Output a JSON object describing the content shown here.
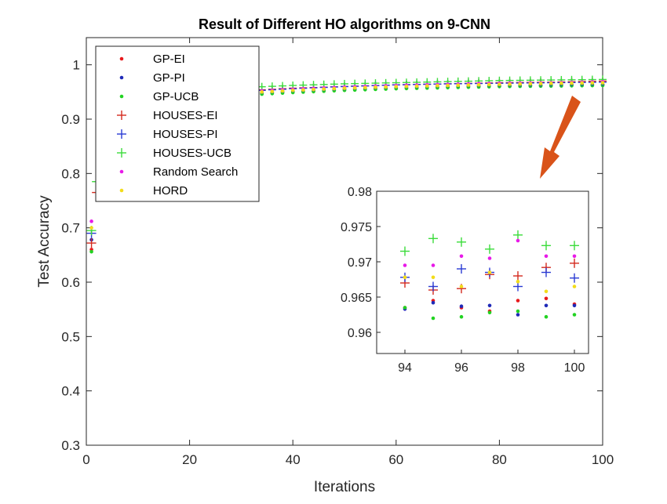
{
  "chart_data": [
    {
      "type": "scatter",
      "title": "Result of Different HO algorithms on 9-CNN",
      "xlabel": "Iterations",
      "ylabel": "Test Accuracy",
      "xlim": [
        0,
        100
      ],
      "ylim": [
        0.3,
        1.05
      ],
      "xticks": [
        "0",
        "20",
        "40",
        "60",
        "80",
        "100"
      ],
      "yticks": [
        "0.3",
        "0.4",
        "0.5",
        "0.6",
        "0.7",
        "0.8",
        "0.9",
        "1"
      ],
      "legend_position": "top-left",
      "series": [
        {
          "name": "GP-EI",
          "marker": "dot",
          "color": "#e8191c",
          "x": [
            1,
            30,
            40,
            50,
            60,
            70,
            80,
            90,
            100
          ],
          "y": [
            0.66,
            0.947,
            0.952,
            0.956,
            0.959,
            0.961,
            0.962,
            0.963,
            0.964
          ]
        },
        {
          "name": "GP-PI",
          "marker": "dot",
          "color": "#1f2ab8",
          "x": [
            1,
            30,
            40,
            50,
            60,
            70,
            80,
            90,
            100
          ],
          "y": [
            0.678,
            0.945,
            0.95,
            0.954,
            0.957,
            0.959,
            0.961,
            0.962,
            0.963
          ]
        },
        {
          "name": "GP-UCB",
          "marker": "dot",
          "color": "#22d322",
          "x": [
            1,
            30,
            40,
            50,
            60,
            70,
            80,
            90,
            100
          ],
          "y": [
            0.656,
            0.944,
            0.949,
            0.953,
            0.956,
            0.958,
            0.96,
            0.961,
            0.962
          ]
        },
        {
          "name": "HOUSES-EI",
          "marker": "plus",
          "color": "#d42a1e",
          "x": [
            1,
            2,
            30,
            40,
            50,
            60,
            70,
            80,
            90,
            100
          ],
          "y": [
            0.672,
            0.765,
            0.952,
            0.957,
            0.96,
            0.963,
            0.965,
            0.967,
            0.968,
            0.97
          ]
        },
        {
          "name": "HOUSES-PI",
          "marker": "plus",
          "color": "#2a3bd4",
          "x": [
            1,
            30,
            40,
            50,
            60,
            70,
            80,
            90,
            100
          ],
          "y": [
            0.69,
            0.951,
            0.956,
            0.96,
            0.963,
            0.965,
            0.966,
            0.967,
            0.968
          ]
        },
        {
          "name": "HOUSES-UCB",
          "marker": "plus",
          "color": "#3bdc3b",
          "x": [
            1,
            2,
            30,
            40,
            50,
            60,
            70,
            80,
            90,
            100
          ],
          "y": [
            0.695,
            0.785,
            0.958,
            0.962,
            0.965,
            0.967,
            0.969,
            0.971,
            0.972,
            0.973
          ]
        },
        {
          "name": "Random Search",
          "marker": "dot",
          "color": "#e81ae8",
          "x": [
            1,
            30,
            40,
            50,
            60,
            70,
            80,
            90,
            100
          ],
          "y": [
            0.712,
            0.95,
            0.955,
            0.959,
            0.962,
            0.964,
            0.966,
            0.967,
            0.969
          ]
        },
        {
          "name": "HORD",
          "marker": "dot",
          "color": "#f2dc1a",
          "x": [
            1,
            30,
            40,
            50,
            60,
            70,
            80,
            90,
            100
          ],
          "y": [
            0.7,
            0.948,
            0.953,
            0.957,
            0.96,
            0.962,
            0.964,
            0.966,
            0.967
          ]
        }
      ]
    },
    {
      "type": "scatter",
      "xlim": [
        93,
        100.5
      ],
      "ylim": [
        0.957,
        0.98
      ],
      "xticks": [
        "94",
        "96",
        "98",
        "100"
      ],
      "yticks": [
        "0.96",
        "0.965",
        "0.97",
        "0.975",
        "0.98"
      ],
      "x": [
        94,
        95,
        96,
        97,
        98,
        99,
        100
      ],
      "series": [
        {
          "name": "GP-EI",
          "marker": "dot",
          "color": "#e8191c",
          "y": [
            0.9635,
            0.9645,
            0.9635,
            0.963,
            0.9645,
            0.9648,
            0.964
          ]
        },
        {
          "name": "GP-PI",
          "marker": "dot",
          "color": "#1f2ab8",
          "y": [
            0.9633,
            0.9642,
            0.9637,
            0.9638,
            0.9625,
            0.9638,
            0.9638
          ]
        },
        {
          "name": "GP-UCB",
          "marker": "dot",
          "color": "#22d322",
          "y": [
            0.9635,
            0.962,
            0.9622,
            0.9628,
            0.963,
            0.9622,
            0.9625
          ]
        },
        {
          "name": "HOUSES-EI",
          "marker": "plus",
          "color": "#d42a1e",
          "y": [
            0.967,
            0.966,
            0.9662,
            0.9682,
            0.968,
            0.9692,
            0.9698
          ]
        },
        {
          "name": "HOUSES-PI",
          "marker": "plus",
          "color": "#2a3bd4",
          "y": [
            0.9678,
            0.9665,
            0.969,
            0.9685,
            0.9665,
            0.9685,
            0.9677
          ]
        },
        {
          "name": "HOUSES-UCB",
          "marker": "plus",
          "color": "#3bdc3b",
          "y": [
            0.9715,
            0.9733,
            0.9728,
            0.9718,
            0.9738,
            0.9723,
            0.9723
          ]
        },
        {
          "name": "Random Search",
          "marker": "dot",
          "color": "#e81ae8",
          "y": [
            0.9695,
            0.9695,
            0.9708,
            0.9705,
            0.973,
            0.9708,
            0.9708
          ]
        },
        {
          "name": "HORD",
          "marker": "dot",
          "color": "#f2dc1a",
          "y": [
            0.9678,
            0.9678,
            0.9665,
            0.9685,
            0.9672,
            0.9658,
            0.9665
          ]
        }
      ]
    }
  ],
  "colors": {
    "axis": "#262626",
    "arrow": "#d95319"
  }
}
